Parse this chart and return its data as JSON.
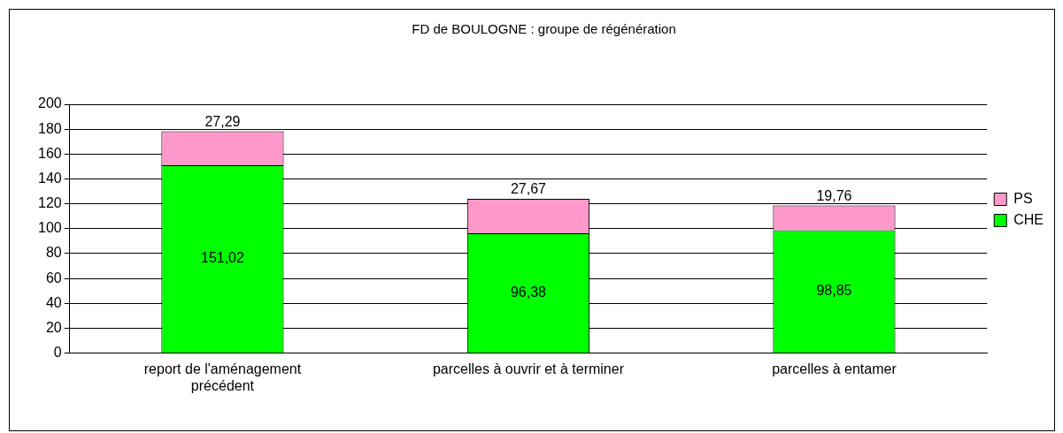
{
  "chart_data": {
    "type": "bar",
    "title": "FD de BOULOGNE : groupe de régénération",
    "categories": [
      "report de l'aménagement précédent",
      "parcelles à ouvrir et à terminer",
      "parcelles à entamer"
    ],
    "series": [
      {
        "name": "CHE",
        "color": "#00ff00",
        "values": [
          151.02,
          96.38,
          98.85
        ],
        "value_labels": [
          "151,02",
          "96,38",
          "98,85"
        ]
      },
      {
        "name": "PS",
        "color": "#ff99cc",
        "values": [
          27.29,
          27.67,
          19.76
        ],
        "value_labels": [
          "27,29",
          "27,67",
          "19,76"
        ]
      }
    ],
    "stacked": true,
    "ylim": [
      0,
      200
    ],
    "yticks": [
      0,
      20,
      40,
      60,
      80,
      100,
      120,
      140,
      160,
      180,
      200
    ],
    "grid": "y",
    "legend": "right"
  }
}
